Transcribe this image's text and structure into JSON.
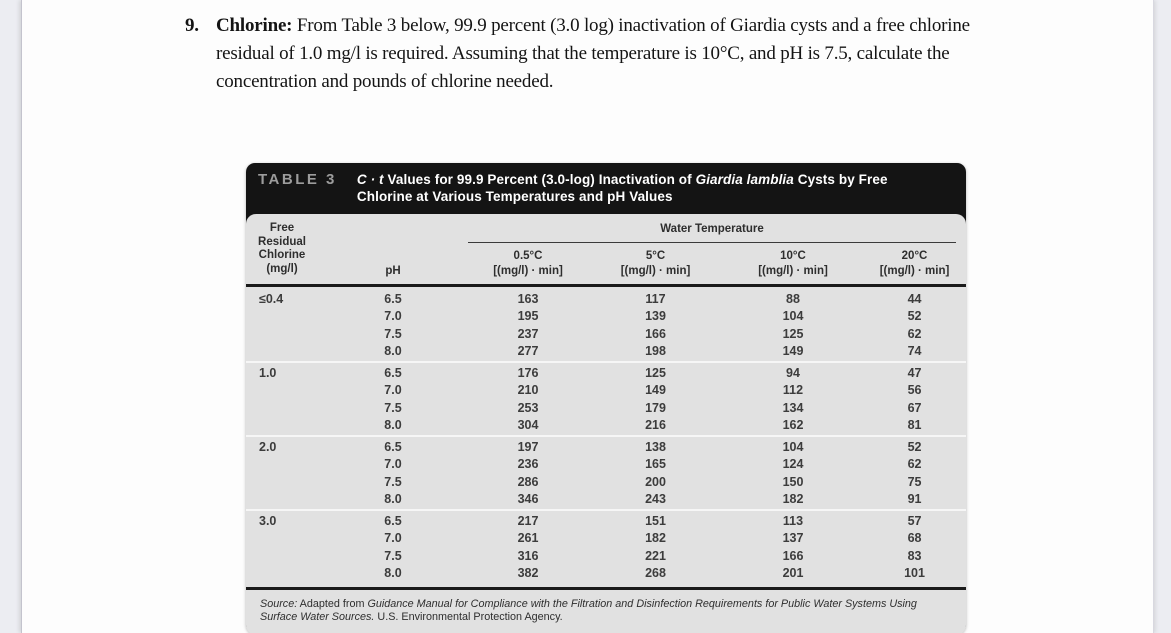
{
  "problem": {
    "number": "9.",
    "lead": "Chlorine:",
    "body": " From Table 3 below, 99.9 percent (3.0 log) inactivation of Giardia cysts and a free chlorine residual of 1.0 mg/l is required. Assuming that the temperature is 10°C, and pH is 7.5, calculate the concentration and pounds of chlorine needed."
  },
  "table": {
    "tag": "TABLE 3",
    "title": {
      "italic_lead": "C · t",
      "mid": " Values for 99.9 Percent (3.0-log) Inactivation of ",
      "species": "Giardia lamblia",
      "tail": " Cysts by Free Chlorine at Various Temperatures and pH Values"
    },
    "header": {
      "chlorine": "Free\nResidual\nChlorine\n(mg/l)",
      "ph": "pH",
      "temp_group": "Water Temperature",
      "temps": [
        {
          "label": "0.5°C",
          "unit": "[(mg/l) · min]"
        },
        {
          "label": "5°C",
          "unit": "[(mg/l) · min]"
        },
        {
          "label": "10°C",
          "unit": "[(mg/l) · min]"
        },
        {
          "label": "20°C",
          "unit": "[(mg/l) · min]"
        }
      ]
    },
    "groups": [
      {
        "chlorine": "≤0.4",
        "rows": [
          {
            "ph": "6.5",
            "v": [
              163,
              117,
              88,
              44
            ]
          },
          {
            "ph": "7.0",
            "v": [
              195,
              139,
              104,
              52
            ]
          },
          {
            "ph": "7.5",
            "v": [
              237,
              166,
              125,
              62
            ]
          },
          {
            "ph": "8.0",
            "v": [
              277,
              198,
              149,
              74
            ]
          }
        ]
      },
      {
        "chlorine": "1.0",
        "rows": [
          {
            "ph": "6.5",
            "v": [
              176,
              125,
              94,
              47
            ]
          },
          {
            "ph": "7.0",
            "v": [
              210,
              149,
              112,
              56
            ]
          },
          {
            "ph": "7.5",
            "v": [
              253,
              179,
              134,
              67
            ]
          },
          {
            "ph": "8.0",
            "v": [
              304,
              216,
              162,
              81
            ]
          }
        ]
      },
      {
        "chlorine": "2.0",
        "rows": [
          {
            "ph": "6.5",
            "v": [
              197,
              138,
              104,
              52
            ]
          },
          {
            "ph": "7.0",
            "v": [
              236,
              165,
              124,
              62
            ]
          },
          {
            "ph": "7.5",
            "v": [
              286,
              200,
              150,
              75
            ]
          },
          {
            "ph": "8.0",
            "v": [
              346,
              243,
              182,
              91
            ]
          }
        ]
      },
      {
        "chlorine": "3.0",
        "rows": [
          {
            "ph": "6.5",
            "v": [
              217,
              151,
              113,
              57
            ]
          },
          {
            "ph": "7.0",
            "v": [
              261,
              182,
              137,
              68
            ]
          },
          {
            "ph": "7.5",
            "v": [
              316,
              221,
              166,
              83
            ]
          },
          {
            "ph": "8.0",
            "v": [
              382,
              268,
              201,
              101
            ]
          }
        ]
      }
    ],
    "source": {
      "label": "Source:",
      "pre": " Adapted from ",
      "work": "Guidance Manual for Compliance with the Filtration and Disinfection Requirements for Public Water Systems Using Surface Water Sources.",
      "tail": " U.S. Environmental Protection Agency."
    }
  },
  "colors": {
    "header_bar": "#141414",
    "tag_text": "#9c9c9c",
    "card_body": "#e1e1e1",
    "page": "#fdfdfd",
    "gutter": "#ecedf2"
  }
}
